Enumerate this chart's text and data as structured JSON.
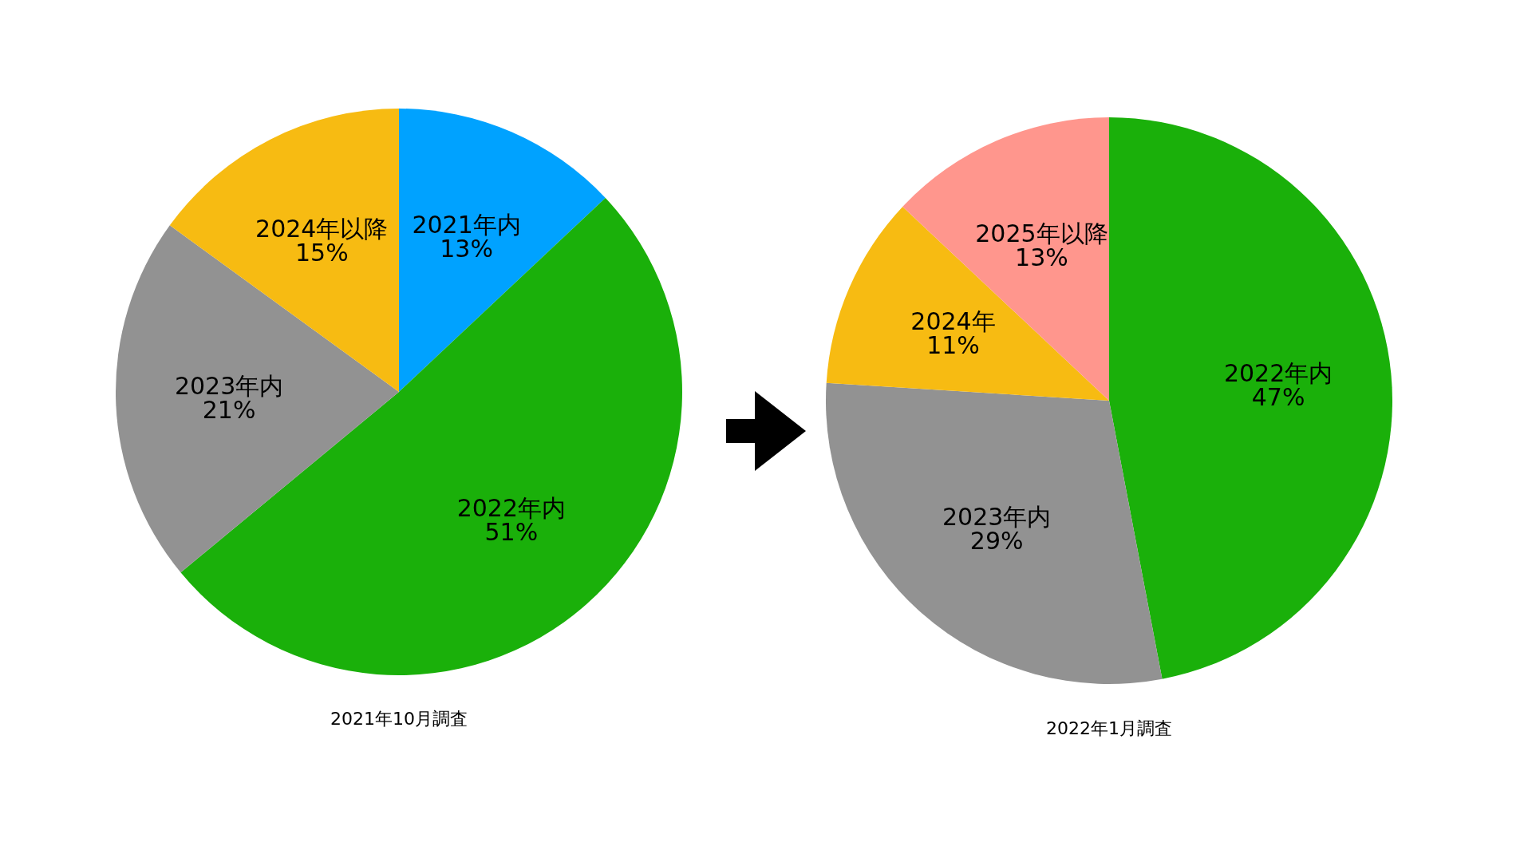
{
  "chart_data": [
    {
      "type": "pie",
      "title": "2021年10月調査",
      "categories": [
        "2021年内",
        "2022年内",
        "2023年内",
        "2024年以降"
      ],
      "values": [
        13,
        51,
        21,
        15
      ],
      "value_labels": [
        "13%",
        "51%",
        "21%",
        "15%"
      ],
      "colors": [
        "#00a2ff",
        "#1ab00a",
        "#929292",
        "#f7bb12"
      ]
    },
    {
      "type": "pie",
      "title": "2022年1月調査",
      "categories": [
        "2022年内",
        "2023年内",
        "2024年",
        "2025年以降"
      ],
      "values": [
        47,
        29,
        11,
        13
      ],
      "value_labels": [
        "47%",
        "29%",
        "11%",
        "13%"
      ],
      "colors": [
        "#1ab00a",
        "#929292",
        "#f7bb12",
        "#ff968d"
      ]
    }
  ]
}
